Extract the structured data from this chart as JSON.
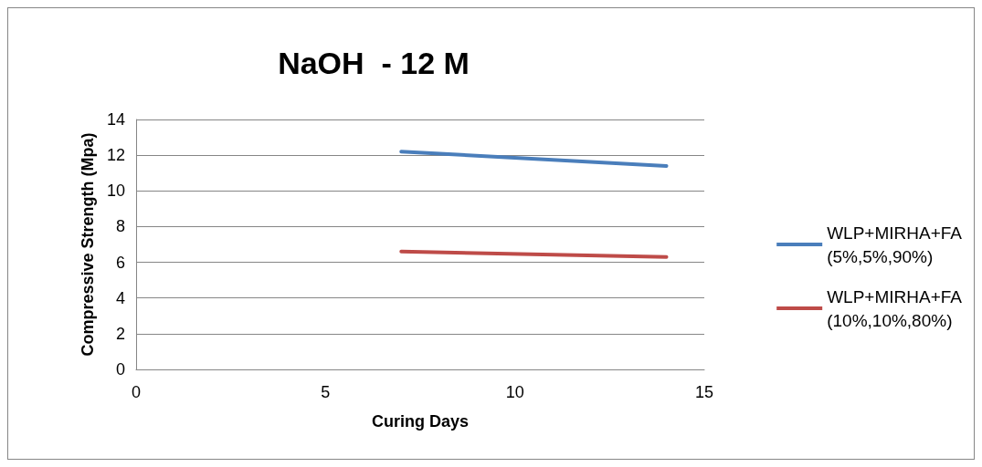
{
  "chart_data": {
    "type": "line",
    "title": "NaOH  - 12 M",
    "xlabel": "Curing Days",
    "ylabel": "Compressive Strength (Mpa)",
    "xlim": [
      0,
      15
    ],
    "xticks": [
      0,
      5,
      10,
      15
    ],
    "ylim": [
      0,
      14
    ],
    "yticks": [
      0,
      2,
      4,
      6,
      8,
      10,
      12,
      14
    ],
    "grid": "y",
    "legend": "right",
    "marker": "none",
    "line_style": "solid",
    "x": [
      7,
      14
    ],
    "series": [
      {
        "name": "WLP+MIRHA+FA\n(5%,5%,90%)",
        "color": "#4a7ebb",
        "values": [
          12.2,
          11.4
        ]
      },
      {
        "name": "WLP+MIRHA+FA\n(10%,10%,80%)",
        "color": "#be4b48",
        "values": [
          6.6,
          6.3
        ]
      }
    ]
  }
}
